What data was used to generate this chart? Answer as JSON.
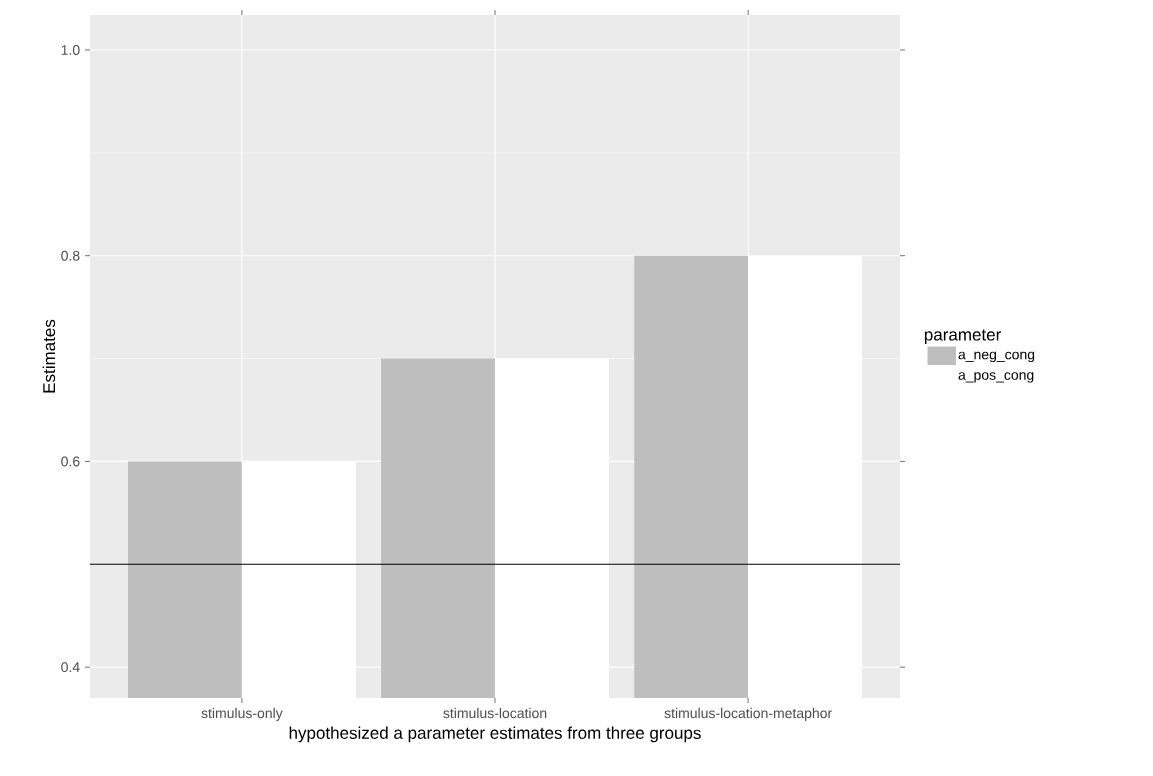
{
  "chart_data": {
    "type": "bar",
    "xlabel": "hypothesized a parameter estimates from three groups",
    "ylabel": "Estimates",
    "legend_title": "parameter",
    "categories": [
      "stimulus-only",
      "stimulus-location",
      "stimulus-location-metaphor"
    ],
    "series": [
      {
        "name": "a_neg_cong",
        "color": "#bebebe",
        "values": [
          0.6,
          0.7,
          0.8
        ]
      },
      {
        "name": "a_pos_cong",
        "color": "#ffffff",
        "values": [
          0.6,
          0.7,
          0.8
        ]
      }
    ],
    "ylim": [
      0.37,
      1.034
    ],
    "yticks": [
      {
        "value": 0.4,
        "label": "0.4"
      },
      {
        "value": 0.6,
        "label": "0.6"
      },
      {
        "value": 0.8,
        "label": "0.8"
      },
      {
        "value": 1.0,
        "label": "1.0"
      }
    ],
    "ref_lines": [
      {
        "axis": "y",
        "value": 0.5,
        "color": "#000000"
      }
    ],
    "grid": true,
    "legend": "right"
  }
}
